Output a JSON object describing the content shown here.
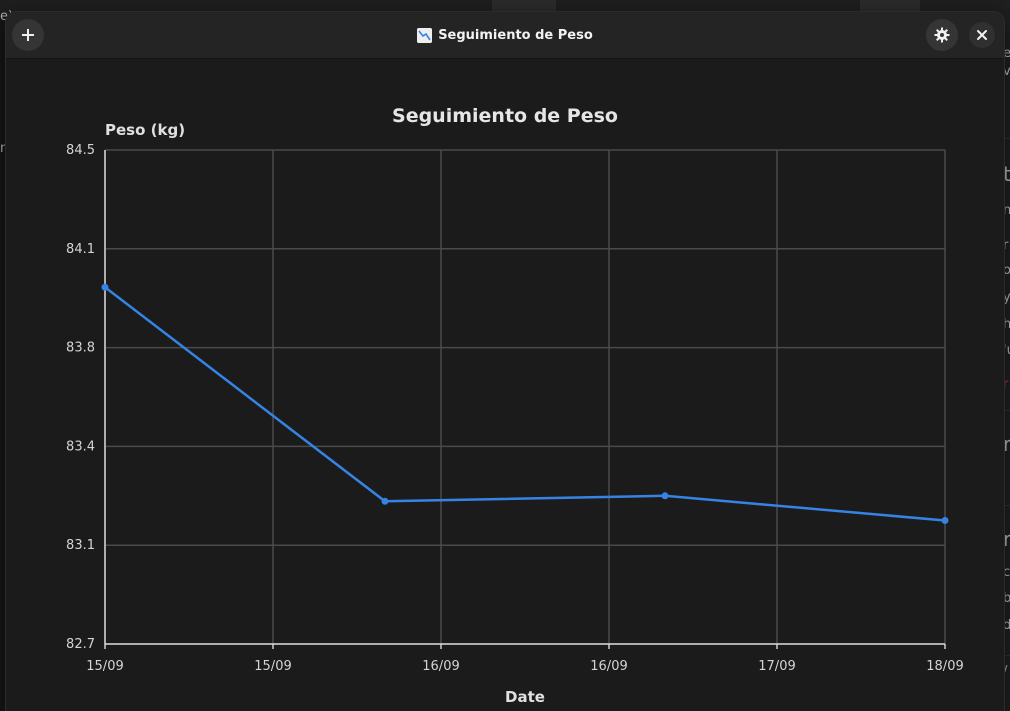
{
  "window": {
    "title": "Seguimiento de Peso",
    "title_icon": "chart-decreasing-icon",
    "add_button_icon": "plus-icon",
    "settings_button_icon": "gear-icon",
    "close_button_icon": "close-icon"
  },
  "background_fragments": [
    "e)",
    "m",
    "e",
    "v",
    "t",
    "n",
    "r",
    "o",
    "y",
    "h",
    "'u",
    "r",
    "r",
    "r",
    "c",
    "b",
    "d",
    "/"
  ],
  "colors": {
    "accent": "#3584e4",
    "background": "#1b1b1b",
    "titlebar": "#242424",
    "grid": "#4a4a4a"
  },
  "chart_data": {
    "type": "line",
    "title": "Seguimiento de Peso",
    "xlabel": "Date",
    "ylabel": "Peso (kg)",
    "x_ticks": [
      "15/09",
      "15/09",
      "16/09",
      "16/09",
      "17/09",
      "18/09"
    ],
    "y_ticks": [
      "82.7",
      "83.1",
      "83.4",
      "83.8",
      "84.1",
      "84.5"
    ],
    "ylim": [
      82.7,
      84.5
    ],
    "grid": true,
    "series": [
      {
        "values": [
          {
            "x": "15/09",
            "y": 84.0
          },
          {
            "x": "16/09",
            "y": 83.22
          },
          {
            "x": "17/09",
            "y": 83.24
          },
          {
            "x": "18/09",
            "y": 83.15
          }
        ]
      }
    ]
  }
}
